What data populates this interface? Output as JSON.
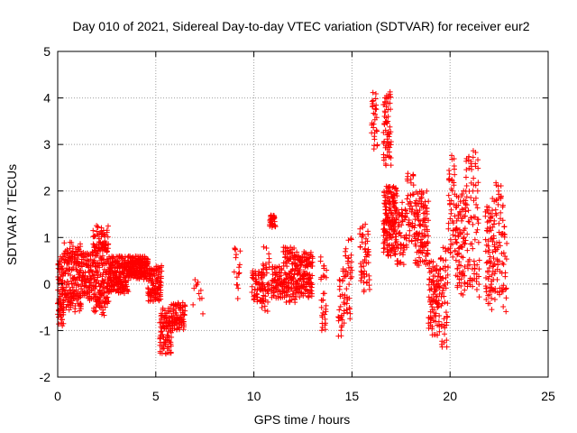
{
  "chart_data": {
    "type": "scatter",
    "title": "Day 010 of 2021, Sidereal Day-to-day VTEC variation (SDTVAR) for receiver eur2",
    "xlabel": "GPS time / hours",
    "ylabel": "SDTVAR / TECUs",
    "xlim": [
      0,
      25
    ],
    "ylim": [
      -2,
      5
    ],
    "xticks": [
      0,
      5,
      10,
      15,
      20,
      25
    ],
    "yticks": [
      -2,
      -1,
      0,
      1,
      2,
      3,
      4,
      5
    ],
    "xtick_labels": [
      "0",
      "5",
      "10",
      "15",
      "20",
      "25"
    ],
    "ytick_labels": [
      "-2",
      "-1",
      "0",
      "1",
      "2",
      "3",
      "4",
      "5"
    ],
    "grid": true,
    "legend": "none",
    "marker": "plus",
    "marker_color": "#ff0000",
    "axis_color": "#000000",
    "grid_color": "#a0a0a0",
    "series": [
      {
        "name": "SDTVAR",
        "segments": [
          {
            "kind": "band",
            "x0": 0.0,
            "x1": 0.3,
            "lo": -0.9,
            "hi": 0.6,
            "step": 0.004,
            "scatter": 0.3
          },
          {
            "kind": "band",
            "x0": 0.3,
            "x1": 1.2,
            "lo": -0.6,
            "hi": 0.9,
            "step": 0.005,
            "scatter": 0.2
          },
          {
            "kind": "band",
            "x0": 1.2,
            "x1": 1.8,
            "lo": -0.4,
            "hi": 0.7,
            "step": 0.006,
            "scatter": 0.2
          },
          {
            "kind": "band",
            "x0": 1.8,
            "x1": 2.6,
            "lo": -0.7,
            "hi": 1.3,
            "step": 0.004,
            "scatter": 0.25
          },
          {
            "kind": "band",
            "x0": 2.6,
            "x1": 3.6,
            "lo": -0.2,
            "hi": 0.6,
            "step": 0.005,
            "scatter": 0.15
          },
          {
            "kind": "band",
            "x0": 3.6,
            "x1": 4.6,
            "lo": 0.1,
            "hi": 0.6,
            "step": 0.005,
            "scatter": 0.1
          },
          {
            "kind": "band",
            "x0": 4.6,
            "x1": 5.3,
            "lo": -0.4,
            "hi": 0.4,
            "step": 0.006,
            "scatter": 0.12
          },
          {
            "kind": "band",
            "x0": 5.2,
            "x1": 5.8,
            "lo": -1.5,
            "hi": -0.5,
            "step": 0.006,
            "scatter": 0.2
          },
          {
            "kind": "band",
            "x0": 5.8,
            "x1": 6.5,
            "lo": -1.0,
            "hi": -0.4,
            "step": 0.008,
            "scatter": 0.15
          },
          {
            "kind": "band",
            "x0": 6.9,
            "x1": 7.4,
            "lo": -1.1,
            "hi": 0.3,
            "step": 0.05,
            "scatter": 0.2
          },
          {
            "kind": "band",
            "x0": 9.0,
            "x1": 9.3,
            "lo": -0.4,
            "hi": 0.8,
            "step": 0.02,
            "scatter": 0.3
          },
          {
            "kind": "band",
            "x0": 9.9,
            "x1": 10.5,
            "lo": -0.4,
            "hi": 0.3,
            "step": 0.01,
            "scatter": 0.15
          },
          {
            "kind": "band",
            "x0": 10.4,
            "x1": 10.8,
            "lo": -0.6,
            "hi": 0.8,
            "step": 0.01,
            "scatter": 0.3
          },
          {
            "kind": "band",
            "x0": 10.8,
            "x1": 11.1,
            "lo": 1.2,
            "hi": 1.5,
            "step": 0.01,
            "scatter": 0.08
          },
          {
            "kind": "band",
            "x0": 10.9,
            "x1": 11.5,
            "lo": -0.3,
            "hi": 0.4,
            "step": 0.008,
            "scatter": 0.15
          },
          {
            "kind": "band",
            "x0": 11.5,
            "x1": 12.1,
            "lo": -0.4,
            "hi": 0.8,
            "step": 0.006,
            "scatter": 0.2
          },
          {
            "kind": "band",
            "x0": 12.1,
            "x1": 13.0,
            "lo": -0.3,
            "hi": 0.7,
            "step": 0.006,
            "scatter": 0.18
          },
          {
            "kind": "band",
            "x0": 13.4,
            "x1": 13.7,
            "lo": -1.2,
            "hi": 0.6,
            "step": 0.01,
            "scatter": 0.3
          },
          {
            "kind": "band",
            "x0": 14.3,
            "x1": 14.6,
            "lo": -1.2,
            "hi": 0.4,
            "step": 0.01,
            "scatter": 0.3
          },
          {
            "kind": "band",
            "x0": 14.6,
            "x1": 15.0,
            "lo": -0.8,
            "hi": 1.0,
            "step": 0.01,
            "scatter": 0.3
          },
          {
            "kind": "band",
            "x0": 15.4,
            "x1": 15.9,
            "lo": -0.2,
            "hi": 1.3,
            "step": 0.01,
            "scatter": 0.3
          },
          {
            "kind": "band",
            "x0": 16.0,
            "x1": 16.3,
            "lo": 2.9,
            "hi": 4.2,
            "step": 0.01,
            "scatter": 0.3
          },
          {
            "kind": "band",
            "x0": 16.6,
            "x1": 17.0,
            "lo": 2.5,
            "hi": 4.2,
            "step": 0.006,
            "scatter": 0.35
          },
          {
            "kind": "band",
            "x0": 16.6,
            "x1": 17.3,
            "lo": 0.6,
            "hi": 2.1,
            "step": 0.004,
            "scatter": 0.3
          },
          {
            "kind": "band",
            "x0": 17.3,
            "x1": 17.8,
            "lo": 0.4,
            "hi": 1.8,
            "step": 0.01,
            "scatter": 0.3
          },
          {
            "kind": "band",
            "x0": 17.8,
            "x1": 18.2,
            "lo": 0.9,
            "hi": 2.4,
            "step": 0.01,
            "scatter": 0.3
          },
          {
            "kind": "band",
            "x0": 18.2,
            "x1": 18.9,
            "lo": 0.4,
            "hi": 2.0,
            "step": 0.006,
            "scatter": 0.3
          },
          {
            "kind": "band",
            "x0": 18.9,
            "x1": 19.5,
            "lo": -1.1,
            "hi": 0.5,
            "step": 0.006,
            "scatter": 0.35
          },
          {
            "kind": "band",
            "x0": 19.5,
            "x1": 19.9,
            "lo": -1.4,
            "hi": 0.8,
            "step": 0.008,
            "scatter": 0.35
          },
          {
            "kind": "band",
            "x0": 19.9,
            "x1": 20.3,
            "lo": 0.5,
            "hi": 2.8,
            "step": 0.008,
            "scatter": 0.3
          },
          {
            "kind": "band",
            "x0": 20.3,
            "x1": 20.8,
            "lo": -0.3,
            "hi": 2.1,
            "step": 0.006,
            "scatter": 0.35
          },
          {
            "kind": "band",
            "x0": 20.8,
            "x1": 21.5,
            "lo": -0.4,
            "hi": 3.0,
            "step": 0.008,
            "scatter": 0.4
          },
          {
            "kind": "band",
            "x0": 21.8,
            "x1": 22.3,
            "lo": -0.6,
            "hi": 1.9,
            "step": 0.006,
            "scatter": 0.35
          },
          {
            "kind": "band",
            "x0": 22.3,
            "x1": 22.7,
            "lo": -0.3,
            "hi": 2.4,
            "step": 0.008,
            "scatter": 0.35
          },
          {
            "kind": "band",
            "x0": 22.7,
            "x1": 22.9,
            "lo": -0.6,
            "hi": 1.5,
            "step": 0.01,
            "scatter": 0.35
          }
        ]
      }
    ]
  }
}
